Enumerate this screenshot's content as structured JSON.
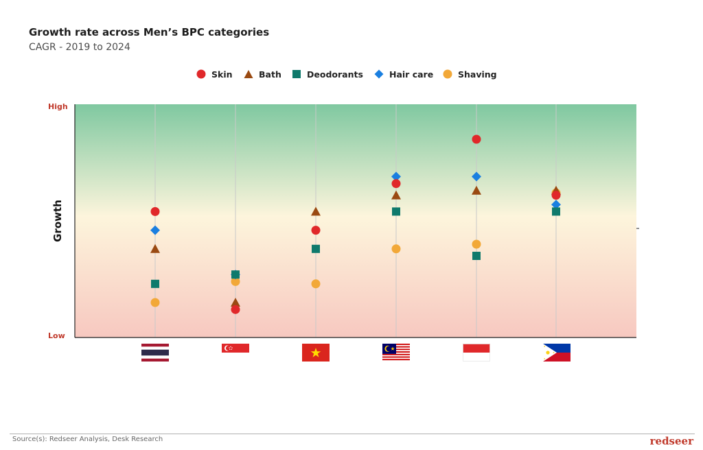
{
  "header": {
    "title": "Growth rate across Men’s BPC categories",
    "subtitle": "CAGR - 2019 to 2024"
  },
  "legend": {
    "items": [
      {
        "label": "Skin",
        "marker": "circle",
        "color": "#e0282a"
      },
      {
        "label": "Bath",
        "marker": "triangle",
        "color": "#9a4a12"
      },
      {
        "label": "Deodorants",
        "marker": "square",
        "color": "#0f7a6c"
      },
      {
        "label": "Hair care",
        "marker": "diamond",
        "color": "#1a7fe0"
      },
      {
        "label": "Shaving",
        "marker": "circle",
        "color": "#f2a838"
      }
    ]
  },
  "axis": {
    "ylabel": "Growth",
    "high_label": "High",
    "low_label": "Low"
  },
  "chart_data": {
    "type": "scatter",
    "title": "Growth rate across Men’s BPC categories",
    "subtitle": "CAGR - 2019 to 2024",
    "ylabel": "Growth",
    "y_tick_labels": [
      "Low",
      "High"
    ],
    "ylim": [
      0,
      100
    ],
    "grid": "vertical",
    "legend_position": "top",
    "categories": [
      "thailand-flag",
      "singapore-flag",
      "vietnam-flag",
      "malaysia-flag",
      "indonesia-flag",
      "philippines-flag"
    ],
    "series": [
      {
        "name": "Skin",
        "values": [
          54,
          12,
          46,
          66,
          85,
          61
        ]
      },
      {
        "name": "Bath",
        "values": [
          38,
          15,
          54,
          61,
          63,
          63
        ]
      },
      {
        "name": "Deodorants",
        "values": [
          23,
          27,
          38,
          54,
          35,
          54
        ]
      },
      {
        "name": "Hair care",
        "values": [
          46,
          27,
          0,
          69,
          69,
          57
        ]
      },
      {
        "name": "Shaving",
        "values": [
          15,
          24,
          23,
          38,
          40,
          62
        ]
      }
    ],
    "missing": [
      {
        "series": "Hair care",
        "category": "vietnam-flag"
      }
    ]
  },
  "footer": {
    "source": "Source(s): Redseer Analysis, Desk Research",
    "brand": "redseer"
  },
  "colors": {
    "gradient_top": "#7fc8a0",
    "gradient_mid": "#fdf5dc",
    "gradient_bottom": "#f7c8c0",
    "accent_red": "#c0392b"
  }
}
